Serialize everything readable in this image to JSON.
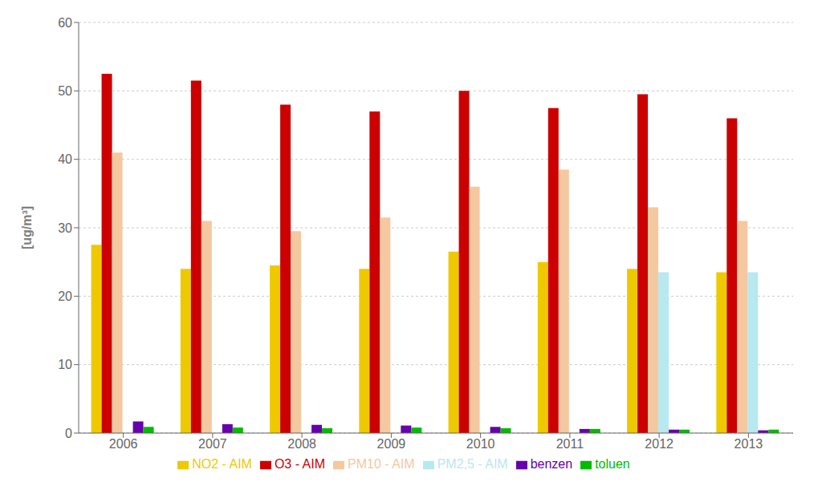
{
  "chart_data": {
    "type": "bar",
    "ylabel": "[ug/m³]",
    "categories": [
      "2006",
      "2007",
      "2008",
      "2009",
      "2010",
      "2011",
      "2012",
      "2013"
    ],
    "series": [
      {
        "name": "NO2 - AIM",
        "color": "#EEC900",
        "values": [
          27.5,
          24.0,
          24.5,
          24.0,
          26.5,
          25.0,
          24.0,
          23.5
        ]
      },
      {
        "name": "O3 - AIM",
        "color": "#CC0000",
        "values": [
          52.5,
          51.5,
          48.0,
          47.0,
          50.0,
          47.5,
          49.5,
          46.0
        ]
      },
      {
        "name": "PM10 - AIM",
        "color": "#F5C8A0",
        "values": [
          41.0,
          31.0,
          29.5,
          31.5,
          36.0,
          38.5,
          33.0,
          31.0
        ]
      },
      {
        "name": "PM2,5 - AIM",
        "color": "#B8E8F0",
        "values": [
          0.0,
          0.0,
          0.0,
          0.0,
          0.0,
          0.0,
          23.5,
          23.5
        ]
      },
      {
        "name": "benzen",
        "color": "#6600AA",
        "values": [
          1.7,
          1.3,
          1.2,
          1.1,
          0.9,
          0.6,
          0.5,
          0.4
        ]
      },
      {
        "name": "toluen",
        "color": "#00BB00",
        "values": [
          0.9,
          0.8,
          0.7,
          0.8,
          0.7,
          0.6,
          0.5,
          0.5
        ]
      }
    ],
    "ylim": [
      0,
      60
    ],
    "yticks": [
      0,
      10,
      20,
      30,
      40,
      50,
      60
    ],
    "grid": true,
    "legend": "bottom"
  }
}
